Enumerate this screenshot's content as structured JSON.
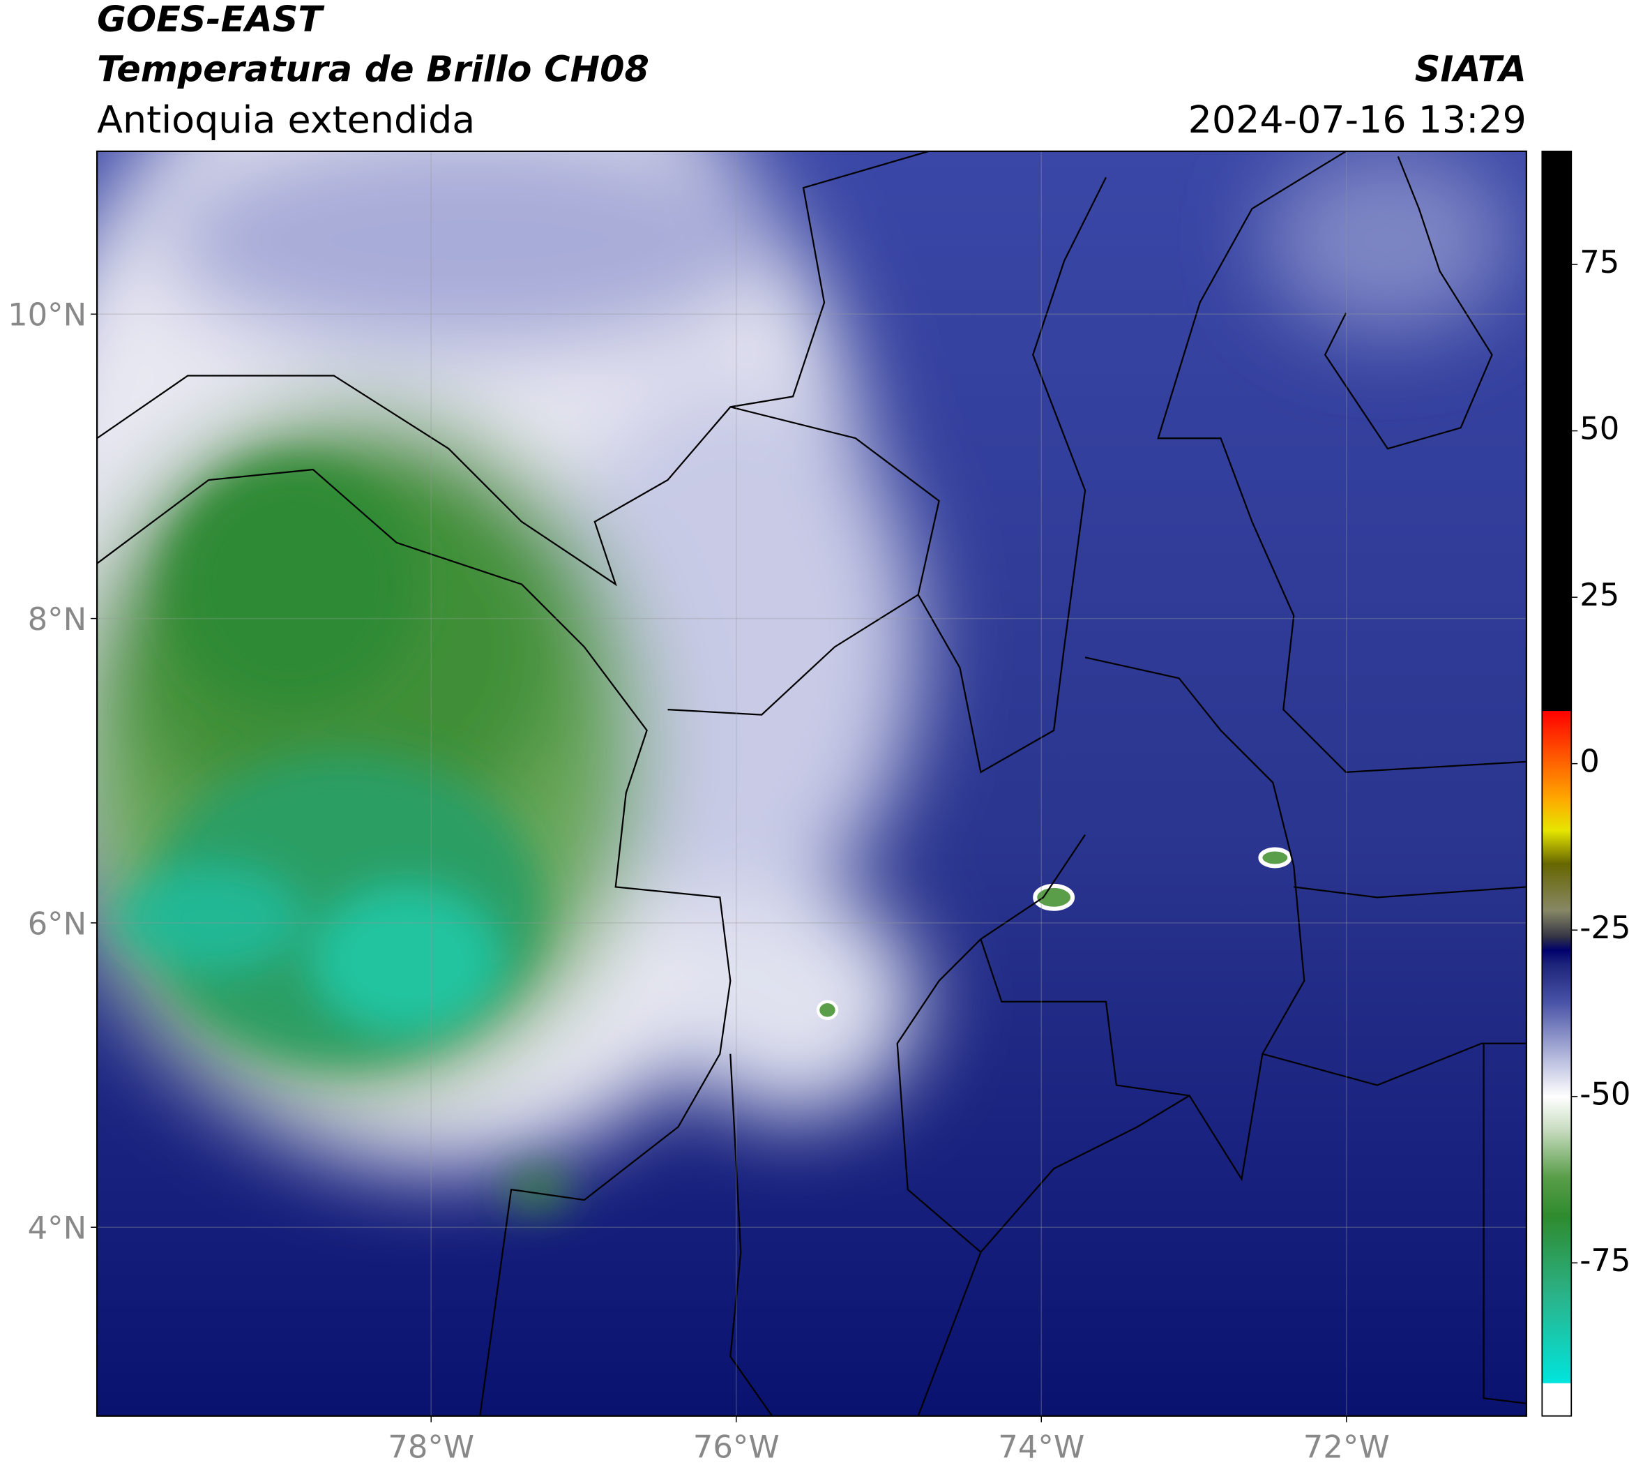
{
  "header": {
    "title": "GOES-EAST",
    "subtitle": "Temperatura de Brillo CH08",
    "region": "Antioquia extendida",
    "source": "SIATA",
    "datetime": "2024-07-16 13:29"
  },
  "map": {
    "xlim": [
      -80.19,
      -70.82
    ],
    "ylim": [
      2.76,
      11.07
    ],
    "xticks": [
      {
        "value": -78,
        "label": "78°W"
      },
      {
        "value": -76,
        "label": "76°W"
      },
      {
        "value": -74,
        "label": "74°W"
      },
      {
        "value": -72,
        "label": "72°W"
      }
    ],
    "yticks": [
      {
        "value": 10,
        "label": "10°N"
      },
      {
        "value": 8,
        "label": "8°N"
      },
      {
        "value": 6,
        "label": "6°N"
      },
      {
        "value": 4,
        "label": "4°N"
      }
    ],
    "grid": true
  },
  "colorbar": {
    "clim": [
      -98,
      92
    ],
    "ticks": [
      75,
      50,
      25,
      0,
      -25,
      -50,
      -75
    ],
    "stops": [
      {
        "value": -98,
        "color": "#ffffff"
      },
      {
        "value": -93,
        "color": "#ffffff"
      },
      {
        "value": -93,
        "color": "#00e5dd"
      },
      {
        "value": -80,
        "color": "#2bb38a"
      },
      {
        "value": -68,
        "color": "#2e8b2e"
      },
      {
        "value": -62,
        "color": "#5a9e4a"
      },
      {
        "value": -55,
        "color": "#c8dcc0"
      },
      {
        "value": -50,
        "color": "#ffffff"
      },
      {
        "value": -44,
        "color": "#b4b8dc"
      },
      {
        "value": -36,
        "color": "#4a55a8"
      },
      {
        "value": -30,
        "color": "#1c237a"
      },
      {
        "value": -28,
        "color": "#00006e"
      },
      {
        "value": -26,
        "color": "#333344"
      },
      {
        "value": -22,
        "color": "#888866"
      },
      {
        "value": -15,
        "color": "#666600"
      },
      {
        "value": -10,
        "color": "#e6e600"
      },
      {
        "value": -5,
        "color": "#ffa500"
      },
      {
        "value": 8,
        "color": "#ff0000"
      },
      {
        "value": 8,
        "color": "#000000"
      },
      {
        "value": 92,
        "color": "#000000"
      }
    ]
  }
}
